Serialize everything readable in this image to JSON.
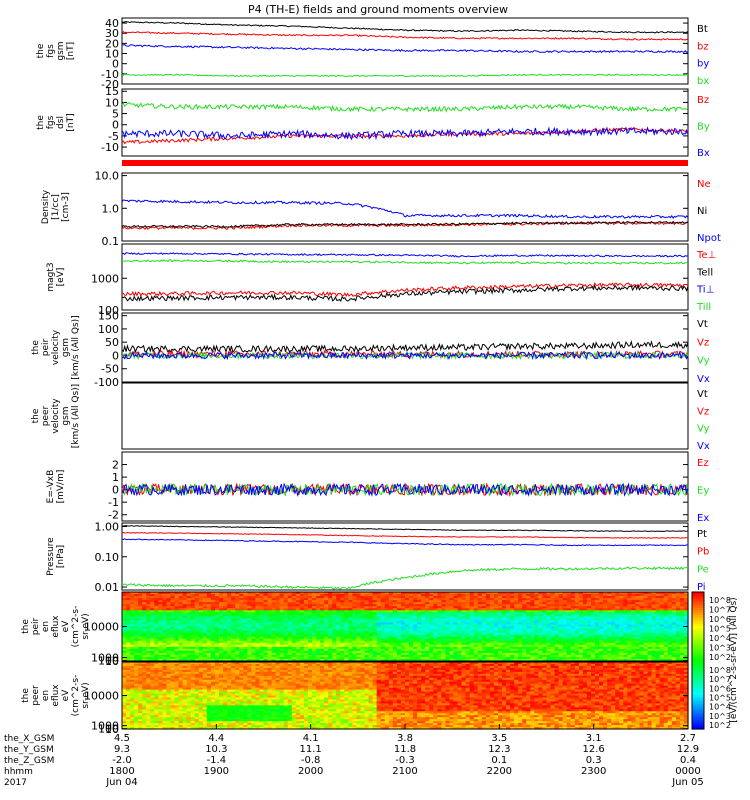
{
  "title": "P4 (TH-E) fields and ground moments overview",
  "colors": {
    "black": "#000000",
    "red": "#ff0000",
    "green": "#22dd22",
    "blue": "#0000ff"
  },
  "chart_data": [
    {
      "id": "fgs_gsm",
      "type": "line",
      "ylabel": [
        "the",
        "fgs",
        "gsm",
        "[nT]"
      ],
      "ylim": [
        -20,
        45
      ],
      "ticks": [
        "40",
        "30",
        "20",
        "10",
        "0",
        "-10",
        "-20"
      ],
      "tick_values": [
        40,
        30,
        20,
        10,
        0,
        -10,
        -20
      ],
      "series": [
        {
          "name": "Bt",
          "color": "black",
          "base": [
            41,
            40,
            38,
            37,
            35,
            33,
            32,
            33,
            32,
            31,
            31
          ],
          "noise": 0.6
        },
        {
          "name": "bz",
          "color": "red",
          "base": [
            31,
            30,
            29,
            28,
            28,
            26,
            25,
            25,
            25,
            24,
            24
          ],
          "noise": 0.7
        },
        {
          "name": "by",
          "color": "blue",
          "base": [
            18,
            17,
            16,
            15,
            14,
            13,
            13,
            12,
            12,
            12,
            12
          ],
          "noise": 0.9
        },
        {
          "name": "bx",
          "color": "green",
          "base": [
            -11,
            -11,
            -12,
            -12,
            -12,
            -12,
            -12,
            -11,
            -11,
            -11,
            -11
          ],
          "noise": 0.6
        }
      ]
    },
    {
      "id": "fgs_dsl",
      "type": "line",
      "ylabel": [
        "the",
        "fgs",
        "dsl",
        "[nT]"
      ],
      "ylim": [
        -14,
        16
      ],
      "ticks": [
        "15",
        "10",
        "5",
        "0",
        "-5",
        "-10"
      ],
      "tick_values": [
        15,
        10,
        5,
        0,
        -5,
        -10
      ],
      "series": [
        {
          "name": "Bz",
          "color": "red",
          "base": [
            -8,
            -7,
            -6,
            -5,
            -5,
            -5,
            -4,
            -4,
            -3,
            -2,
            -3
          ],
          "noise": 0.8
        },
        {
          "name": "By",
          "color": "green",
          "base": [
            9,
            8,
            8,
            8,
            7,
            7,
            7,
            8,
            8,
            7,
            7
          ],
          "noise": 1.0
        },
        {
          "name": "Bx",
          "color": "blue",
          "base": [
            -4,
            -4,
            -5,
            -4,
            -5,
            -4,
            -4,
            -3,
            -3,
            -3,
            -3
          ],
          "noise": 1.6
        }
      ]
    },
    {
      "id": "density",
      "type": "line",
      "log": true,
      "ylabel": [
        "Density",
        "[1/cc]",
        "[cm-3]"
      ],
      "ylim": [
        0.1,
        12
      ],
      "ticks": [
        "10.0",
        "1.0",
        "0.1"
      ],
      "tick_values": [
        10,
        1,
        0.1
      ],
      "series": [
        {
          "name": "Ne",
          "color": "red",
          "base": [
            0.25,
            0.25,
            0.25,
            0.3,
            0.3,
            0.3,
            0.32,
            0.33,
            0.35,
            0.35,
            0.35
          ],
          "noise": 0.08
        },
        {
          "name": "Ni",
          "color": "black",
          "base": [
            0.28,
            0.28,
            0.28,
            0.32,
            0.32,
            0.32,
            0.33,
            0.35,
            0.36,
            0.37,
            0.37
          ],
          "noise": 0.06
        },
        {
          "name": "Npot",
          "color": "blue",
          "base": [
            1.7,
            1.6,
            1.5,
            1.5,
            1.4,
            0.6,
            0.6,
            0.6,
            0.55,
            0.55,
            0.55
          ],
          "noise": 0.08
        }
      ]
    },
    {
      "id": "temperature",
      "type": "line",
      "log": true,
      "ylabel": [
        "magt3",
        "[eV]"
      ],
      "ylim": [
        100,
        12000
      ],
      "ticks": [
        "1000",
        "100"
      ],
      "tick_values": [
        1000,
        100
      ],
      "series": [
        {
          "name": "Te⊥",
          "color": "red",
          "base": [
            320,
            330,
            350,
            350,
            300,
            420,
            500,
            550,
            600,
            620,
            600
          ],
          "noise": 0.12
        },
        {
          "name": "Tell",
          "color": "black",
          "base": [
            230,
            240,
            250,
            250,
            220,
            320,
            380,
            420,
            480,
            500,
            480
          ],
          "noise": 0.15
        },
        {
          "name": "Ti⊥",
          "color": "blue",
          "base": [
            6000,
            6000,
            5800,
            5600,
            5500,
            5300,
            5000,
            5200,
            5100,
            5000,
            5000
          ],
          "noise": 0.05
        },
        {
          "name": "Till",
          "color": "green",
          "base": [
            3500,
            3600,
            3500,
            3300,
            3300,
            3200,
            3000,
            3100,
            3000,
            3000,
            3000
          ],
          "noise": 0.06
        }
      ]
    },
    {
      "id": "peir_velocity",
      "type": "line",
      "ylabel": [
        "the",
        "peir",
        "velocity",
        "gsm",
        "[km/s (All Qs)]"
      ],
      "ylim": [
        -100,
        160
      ],
      "ticks": [
        "150",
        "100",
        "50",
        "0",
        "-50",
        "-100"
      ],
      "tick_values": [
        150,
        100,
        50,
        0,
        -50,
        -100
      ],
      "series": [
        {
          "name": "Vt",
          "color": "black",
          "base": [
            25,
            25,
            25,
            25,
            25,
            30,
            30,
            35,
            35,
            40,
            40
          ],
          "noise": 12
        },
        {
          "name": "Vz",
          "color": "red",
          "base": [
            5,
            5,
            5,
            5,
            5,
            5,
            5,
            5,
            5,
            5,
            5
          ],
          "noise": 12
        },
        {
          "name": "Vy",
          "color": "green",
          "base": [
            0,
            0,
            0,
            0,
            0,
            0,
            0,
            0,
            0,
            0,
            0
          ],
          "noise": 12
        },
        {
          "name": "Vx",
          "color": "blue",
          "base": [
            0,
            0,
            0,
            0,
            0,
            0,
            0,
            0,
            0,
            0,
            0
          ],
          "noise": 12
        }
      ]
    },
    {
      "id": "peer_velocity",
      "type": "line",
      "empty": true,
      "ylabel": [
        "the",
        "peer",
        "velocity",
        "gsm",
        "[km/s (All Qs)]"
      ],
      "series": [
        {
          "name": "Vt",
          "color": "black"
        },
        {
          "name": "Vz",
          "color": "red"
        },
        {
          "name": "Vy",
          "color": "green"
        },
        {
          "name": "Vx",
          "color": "blue"
        }
      ]
    },
    {
      "id": "efield",
      "type": "line",
      "ylabel": [
        "E=-VxB",
        "[mV/m]"
      ],
      "ylim": [
        -2.5,
        3
      ],
      "ticks": [
        "2",
        "1",
        "0",
        "-1",
        "-2"
      ],
      "tick_values": [
        2,
        1,
        0,
        -1,
        -2
      ],
      "series": [
        {
          "name": "Ez",
          "color": "red",
          "base": [
            0,
            0,
            0,
            0,
            0,
            0,
            0,
            0,
            0,
            0,
            0
          ],
          "noise": 0.45
        },
        {
          "name": "Ey",
          "color": "green",
          "base": [
            0,
            0,
            0,
            0,
            0,
            0,
            0,
            0,
            0,
            0,
            0
          ],
          "noise": 0.45
        },
        {
          "name": "Ex",
          "color": "blue",
          "base": [
            0,
            0,
            0,
            0,
            0,
            0,
            0,
            0,
            0,
            0,
            0
          ],
          "noise": 0.45
        }
      ]
    },
    {
      "id": "pressure",
      "type": "line",
      "log": true,
      "ylabel": [
        "Pressure",
        "[nPa]"
      ],
      "ylim": [
        0.008,
        1.3
      ],
      "ticks": [
        "1.00",
        "0.10",
        "0.01"
      ],
      "tick_values": [
        1,
        0.1,
        0.01
      ],
      "series": [
        {
          "name": "Pt",
          "color": "black",
          "base": [
            1.05,
            1.0,
            0.95,
            0.9,
            0.85,
            0.8,
            0.75,
            0.75,
            0.72,
            0.7,
            0.7
          ],
          "noise": 0.02
        },
        {
          "name": "Pb",
          "color": "red",
          "base": [
            0.62,
            0.6,
            0.57,
            0.54,
            0.5,
            0.47,
            0.45,
            0.45,
            0.43,
            0.42,
            0.42
          ],
          "noise": 0.02
        },
        {
          "name": "Pe",
          "color": "green",
          "base": [
            0.012,
            0.011,
            0.011,
            0.01,
            0.009,
            0.02,
            0.035,
            0.04,
            0.04,
            0.042,
            0.042
          ],
          "noise": 0.08
        },
        {
          "name": "Pi",
          "color": "blue",
          "base": [
            0.38,
            0.36,
            0.34,
            0.32,
            0.3,
            0.27,
            0.25,
            0.25,
            0.24,
            0.24,
            0.24
          ],
          "noise": 0.03
        }
      ]
    },
    {
      "id": "peir_eflux",
      "type": "heatmap",
      "ylabel": [
        "the",
        "peir",
        "en",
        "eflux",
        "eV",
        "(cm^2-s-",
        "sr-eV)"
      ],
      "ylim": [
        5,
        20000
      ],
      "ticks": [
        "10000",
        "1000",
        "100",
        "10"
      ],
      "tick_values": [
        10000,
        1000,
        100,
        10
      ]
    },
    {
      "id": "peer_eflux",
      "type": "heatmap",
      "ylabel": [
        "the",
        "peer",
        "en",
        "eflux",
        "eV",
        "(cm^2-s-",
        "sr-eV)"
      ],
      "ylim": [
        5,
        20000
      ],
      "ticks": [
        "10000",
        "1000",
        "100",
        "10"
      ],
      "tick_values": [
        10000,
        1000,
        100,
        10
      ]
    }
  ],
  "colorbar": {
    "label": "[eV/(cm^2-s-sr-eV)] (All Qs)",
    "ticks_top": [
      "10^8",
      "10^7",
      "10^6",
      "10^5",
      "10^4",
      "10^3",
      "10^2"
    ],
    "ticks_bottom": [
      "10^8",
      "10^7",
      "10^6",
      "10^5",
      "10^4",
      "10^3",
      "10^2"
    ]
  },
  "xaxis": {
    "row_labels": [
      "the_X_GSM",
      "the_Y_GSM",
      "the_Z_GSM",
      "hhmm",
      "2017"
    ],
    "columns": [
      [
        "4.5",
        "4.4",
        "4.1",
        "3.8",
        "3.5",
        "3.1",
        "2.7"
      ],
      [
        "9.3",
        "10.3",
        "11.1",
        "11.8",
        "12.3",
        "12.6",
        "12.9"
      ],
      [
        "-2.0",
        "-1.4",
        "-0.8",
        "-0.3",
        "0.1",
        "0.3",
        "0.4"
      ],
      [
        "1800",
        "1900",
        "2000",
        "2100",
        "2200",
        "2300",
        "0000"
      ],
      [
        "Jun 04",
        "",
        "",
        "",
        "",
        "",
        "Jun 05"
      ]
    ]
  }
}
